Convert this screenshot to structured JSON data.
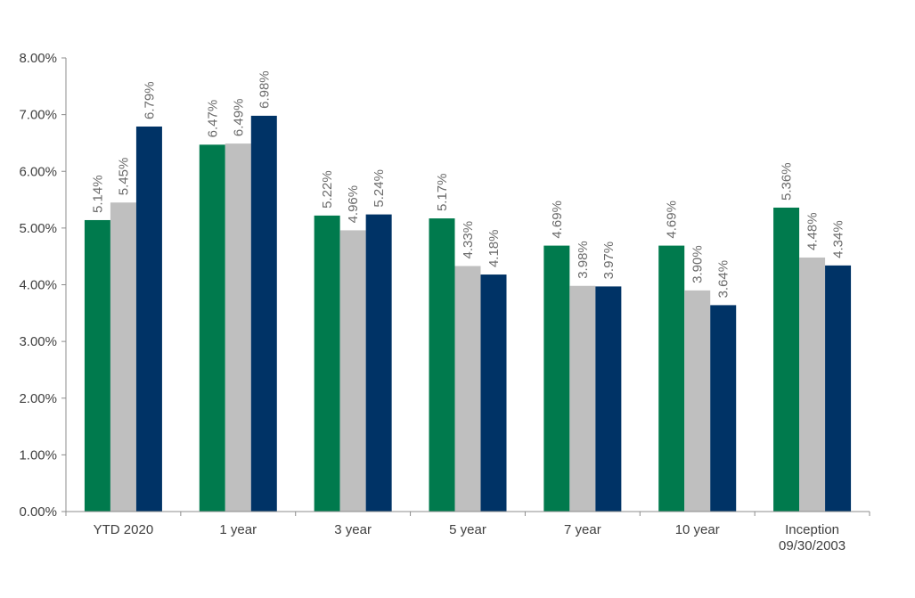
{
  "chart_data": {
    "type": "bar",
    "categories": [
      [
        "YTD 2020"
      ],
      [
        "1 year"
      ],
      [
        "3 year"
      ],
      [
        "5 year"
      ],
      [
        "7 year"
      ],
      [
        "10 year"
      ],
      [
        "Inception",
        "09/30/2003"
      ]
    ],
    "series": [
      {
        "values": [
          5.14,
          6.47,
          5.22,
          5.17,
          4.69,
          4.69,
          5.36
        ],
        "labels": [
          "5.14%",
          "6.47%",
          "5.22%",
          "5.17%",
          "4.69%",
          "4.69%",
          "5.36%"
        ],
        "color": "#007a4d"
      },
      {
        "values": [
          5.45,
          6.49,
          4.96,
          4.33,
          3.98,
          3.9,
          4.48
        ],
        "labels": [
          "5.45%",
          "6.49%",
          "4.96%",
          "4.33%",
          "3.98%",
          "3.90%",
          "4.48%"
        ],
        "color": "#bfbfbf"
      },
      {
        "values": [
          6.79,
          6.98,
          5.24,
          4.18,
          3.97,
          3.64,
          4.34
        ],
        "labels": [
          "6.79%",
          "6.98%",
          "5.24%",
          "4.18%",
          "3.97%",
          "3.64%",
          "4.34%"
        ],
        "color": "#003366"
      }
    ],
    "yticks": [
      "0.00%",
      "1.00%",
      "2.00%",
      "3.00%",
      "4.00%",
      "5.00%",
      "6.00%",
      "7.00%",
      "8.00%"
    ],
    "ylim": [
      0,
      8
    ],
    "title": "",
    "xlabel": "",
    "ylabel": "",
    "grid": false,
    "legend": "none"
  }
}
